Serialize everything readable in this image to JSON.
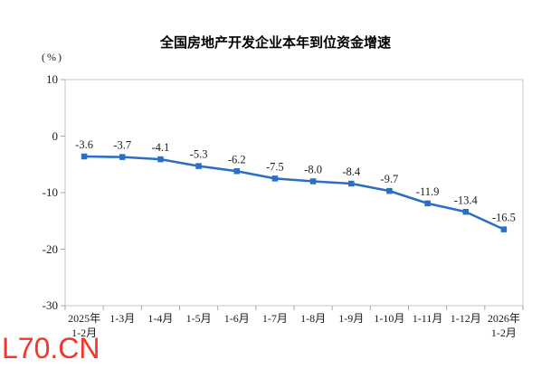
{
  "watermark": "L70.CN",
  "colors": {
    "line": "#2A6FC5",
    "marker": "#2A6FC5",
    "data_label": "#1A1A1A",
    "axis_box": "#C6C6C6",
    "tick": "#A6A6A6",
    "title": "#000000",
    "watermark": "#F3352A",
    "background": "#FFFFFF"
  },
  "chart_data": {
    "type": "line",
    "title": "全国房地产开发企业本年到位资金增速",
    "ylabel": "(%)",
    "xlabel": "",
    "categories": [
      "2025年\n1-2月",
      "1-3月",
      "1-4月",
      "1-5月",
      "1-6月",
      "1-7月",
      "1-8月",
      "1-9月",
      "1-10月",
      "1-11月",
      "1-12月",
      "2026年\n1-2月"
    ],
    "values": [
      -3.6,
      -3.7,
      -4.1,
      -5.3,
      -6.2,
      -7.5,
      -8.0,
      -8.4,
      -9.7,
      -11.9,
      -13.4,
      -16.5
    ],
    "data_labels": [
      "-3.6",
      "-3.7",
      "-4.1",
      "-5.3",
      "-6.2",
      "-7.5",
      "-8.0",
      "-8.4",
      "-9.7",
      "-11.9",
      "-13.4",
      "-16.5"
    ],
    "ylim": [
      -30,
      10
    ],
    "yticks": [
      10,
      0,
      -10,
      -20,
      -30
    ],
    "grid": false,
    "legend": "none",
    "marker": "square"
  }
}
